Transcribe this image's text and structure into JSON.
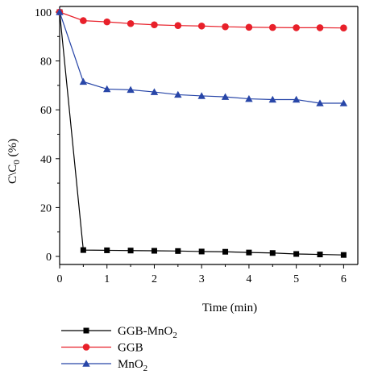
{
  "chart_data": {
    "type": "line",
    "title": "",
    "xlabel": "Time (min)",
    "ylabel": "C\\C0 (%)",
    "ylabel_main": "C\\C",
    "ylabel_sub": "0",
    "ylabel_unit": " (%)",
    "xlim": [
      0,
      6.3
    ],
    "ylim": [
      0,
      100
    ],
    "xticks": [
      0,
      1,
      2,
      3,
      4,
      5,
      6
    ],
    "yticks": [
      0,
      20,
      40,
      60,
      80,
      100
    ],
    "grid": false,
    "legend_position": "bottom-left",
    "series": [
      {
        "name": "GGB-MnO2",
        "label_main": "GGB-MnO",
        "label_sub": "2",
        "color": "#000000",
        "marker": "square",
        "x": [
          0,
          0.5,
          1,
          1.5,
          2,
          2.5,
          3,
          3.5,
          4,
          4.5,
          5,
          5.5,
          6
        ],
        "y": [
          100,
          2.6,
          2.5,
          2.4,
          2.3,
          2.2,
          2.0,
          1.9,
          1.6,
          1.4,
          1.0,
          0.8,
          0.6
        ]
      },
      {
        "name": "GGB",
        "label_main": "GGB",
        "label_sub": "",
        "color": "#e8202a",
        "marker": "circle",
        "x": [
          0,
          0.5,
          1,
          1.5,
          2,
          2.5,
          3,
          3.5,
          4,
          4.5,
          5,
          5.5,
          6
        ],
        "y": [
          100,
          96.5,
          96,
          95.3,
          94.8,
          94.5,
          94.3,
          94.0,
          93.8,
          93.7,
          93.6,
          93.6,
          93.5
        ]
      },
      {
        "name": "MnO2",
        "label_main": "MnO",
        "label_sub": "2",
        "color": "#2846a8",
        "marker": "triangle",
        "x": [
          0,
          0.5,
          1,
          1.5,
          2,
          2.5,
          3,
          3.5,
          4,
          4.5,
          5,
          5.5,
          6
        ],
        "y": [
          100,
          71.5,
          68.5,
          68.2,
          67.3,
          66.2,
          65.7,
          65.3,
          64.5,
          64.2,
          64.2,
          62.7,
          62.7
        ]
      }
    ]
  }
}
